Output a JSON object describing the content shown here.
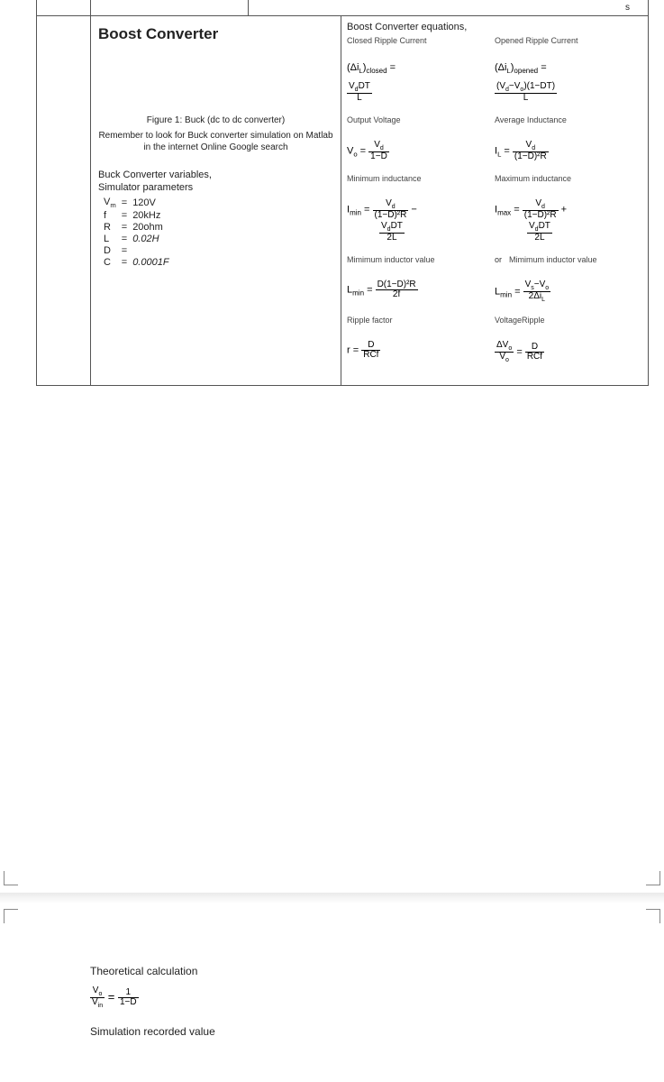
{
  "top_right_label": "s",
  "left_panel": {
    "title": "Boost Converter",
    "figure_caption": "Figure 1: Buck (dc to dc converter)",
    "remember": "Remember to look for Buck converter simulation on Matlab in the internet Online Google search",
    "vars_title": "Buck Converter variables,",
    "params_title": "Simulator parameters",
    "params": [
      {
        "sym": "V",
        "sub": "m",
        "val": "120V"
      },
      {
        "sym": "f",
        "sub": "",
        "val": "20kHz"
      },
      {
        "sym": "R",
        "sub": "",
        "val": "20ohm"
      },
      {
        "sym": "L",
        "sub": "",
        "val": "0.02H",
        "italic": true
      },
      {
        "sym": "D",
        "sub": "",
        "val": ""
      },
      {
        "sym": "C",
        "sub": "",
        "val": "0.0001F",
        "italic": true
      }
    ]
  },
  "right_panel": {
    "title": "Boost Converter equations,",
    "rows": [
      {
        "left_label": "Closed Ripple Current",
        "right_label": "Opened Ripple Current"
      }
    ],
    "closed_ripple_lhs": "(Δi",
    "closed_ripple_sub": "L",
    "closed_suffix": "closed",
    "opened_suffix": "opened",
    "eq_eq": "=",
    "vdt_num": "V",
    "vdt_sub": "d",
    "vdt_after": "DT",
    "vdt_den": "L",
    "opened_num_a": "(V",
    "opened_num_b": "−V",
    "opened_num_c": ")(1−DT)",
    "opened_den": "L",
    "output_voltage_label": "Output Voltage",
    "avg_ind_label": "Average Inductance",
    "vo_lhs": "V",
    "vo_sub": "o",
    "vo_num": "V",
    "vo_num_sub": "d",
    "vo_den": "1−D",
    "IL_lhs": "I",
    "IL_sub": "L",
    "IL_num": "V",
    "IL_num_sub": "d",
    "IL_den": "(1−D)²R",
    "min_ind_label": "Minimum inductance",
    "max_ind_label": "Maximum inductance",
    "Imin_lhs": "I",
    "Imin_sub": "min",
    "Imax_lhs": "I",
    "Imax_sub": "max",
    "term1_num": "V",
    "term1_num_sub": "d",
    "term1_den": "(1−D)²R",
    "minus": "−",
    "plus": "+",
    "term2_num": "V",
    "term2_num_sub": "d",
    "term2_after": "DT",
    "term2_den": "2L",
    "min_inductor_label": "Mimimum inductor value",
    "or_label": "or",
    "min_inductor_label2": "Mimimum inductor value",
    "Lmin_lhs": "L",
    "Lmin_sub": "min",
    "Lmin_num": "D(1−D)²R",
    "Lmin_den": "2f",
    "Lmin2_num_a": "V",
    "Lmin2_num_sub_a": "s",
    "Lmin2_num_b": "−V",
    "Lmin2_num_sub_b": "o",
    "Lmin2_den": "2Δi",
    "Lmin2_den_sub": "L",
    "ripple_label": "Ripple factor",
    "vripple_label": "VoltageRipple",
    "r_lhs": "r =",
    "r_num": "D",
    "r_den": "RCf",
    "dv_num": "ΔV",
    "dv_num_sub": "o",
    "dv_mid": "V",
    "dv_mid_sub": "o",
    "dv_rhs_num": "D",
    "dv_rhs_den": "RCf"
  },
  "bottom": {
    "theoretical": "Theoretical calculation",
    "tc_left_num": "V",
    "tc_left_num_sub": "o",
    "tc_left_den": "V",
    "tc_left_den_sub": "in",
    "tc_eq": "=",
    "tc_right_num": "1",
    "tc_right_den": "1−D",
    "sim_recorded": "Simulation recorded value"
  }
}
